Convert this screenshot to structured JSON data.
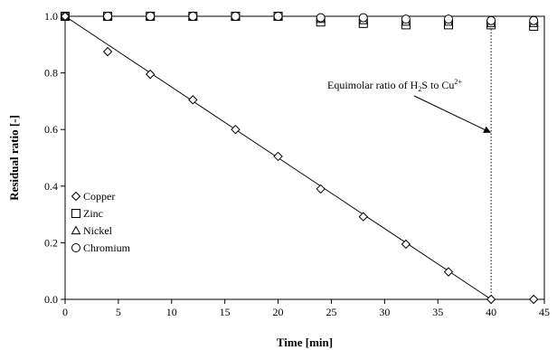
{
  "chart_data": {
    "type": "scatter",
    "xlabel": "Time [min]",
    "ylabel": "Residual ratio [-]",
    "xlim": [
      0,
      45
    ],
    "ylim": [
      0,
      1.0
    ],
    "x_ticks": [
      "0",
      "5",
      "10",
      "15",
      "20",
      "25",
      "30",
      "35",
      "40",
      "45"
    ],
    "y_ticks": [
      "0.0",
      "0.2",
      "0.4",
      "0.6",
      "0.8",
      "1.0"
    ],
    "grid": false,
    "legend_position": "bottom-left",
    "series": [
      {
        "name": "Copper",
        "marker": "diamond",
        "x": [
          0,
          4,
          8,
          12,
          16,
          20,
          24,
          28,
          32,
          36,
          40,
          44
        ],
        "y": [
          1.0,
          0.875,
          0.795,
          0.705,
          0.6,
          0.505,
          0.39,
          0.292,
          0.195,
          0.097,
          0.0,
          0.0
        ]
      },
      {
        "name": "Zinc",
        "marker": "square",
        "x": [
          0,
          4,
          8,
          12,
          16,
          20,
          24,
          28,
          32,
          36,
          40,
          44
        ],
        "y": [
          1.0,
          1.0,
          1.0,
          1.0,
          1.0,
          1.0,
          0.98,
          0.975,
          0.97,
          0.97,
          0.97,
          0.965
        ]
      },
      {
        "name": "Nickel",
        "marker": "triangle",
        "x": [
          0,
          4,
          8,
          12,
          16,
          20,
          24,
          28,
          32,
          36,
          40,
          44
        ],
        "y": [
          1.0,
          1.0,
          1.0,
          1.0,
          1.0,
          1.0,
          0.99,
          0.985,
          0.98,
          0.98,
          0.975,
          0.975
        ]
      },
      {
        "name": "Chromium",
        "marker": "circle",
        "x": [
          0,
          4,
          8,
          12,
          16,
          20,
          24,
          28,
          32,
          36,
          40,
          44
        ],
        "y": [
          1.0,
          1.0,
          1.0,
          1.0,
          1.0,
          1.0,
          0.995,
          0.995,
          0.99,
          0.99,
          0.985,
          0.985
        ]
      }
    ],
    "fit_line": {
      "x": [
        0,
        40
      ],
      "y": [
        1.0,
        0.0
      ]
    },
    "vertical_line_x": 40,
    "annotation": {
      "text_before": "Equimolar ratio of H",
      "sub1": "2",
      "text_middle": "S to Cu",
      "sup": "2+",
      "target": {
        "x": 40,
        "y": 0.59
      }
    }
  }
}
